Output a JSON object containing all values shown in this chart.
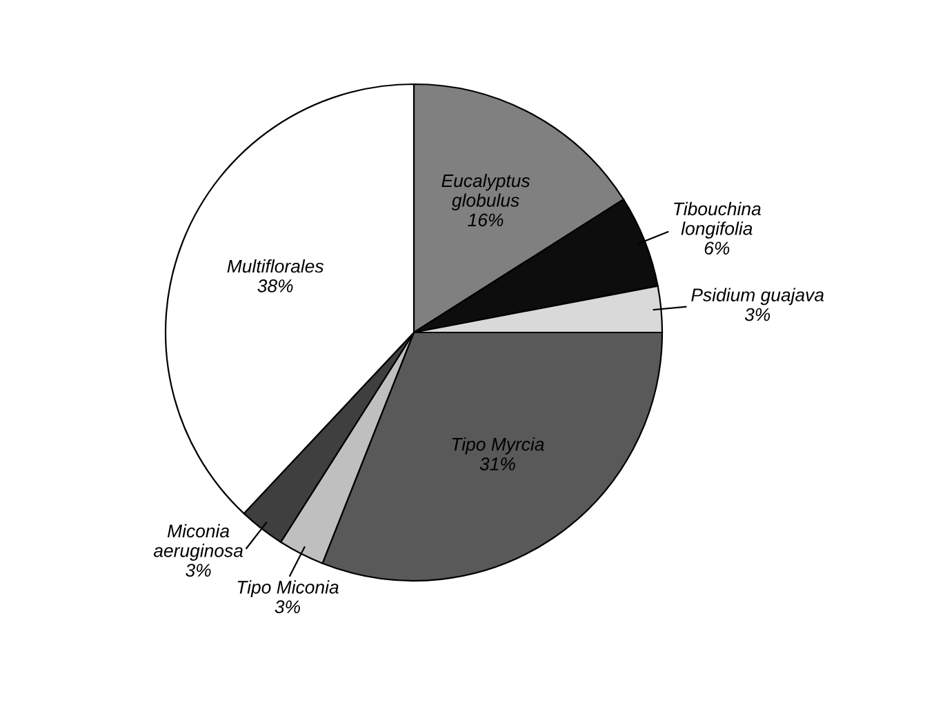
{
  "chart_data": {
    "type": "pie",
    "categories": [
      "Eucalyptus globulus",
      "Tibouchina longifolia",
      "Psidium guajava",
      "Tipo Myrcia",
      "Tipo Miconia",
      "Miconia aeruginosa",
      "Multiflorales"
    ],
    "values": [
      16,
      6,
      3,
      31,
      3,
      3,
      38
    ],
    "colors": [
      "#808080",
      "#0d0d0d",
      "#d9d9d9",
      "#595959",
      "#bfbfbf",
      "#3f3f3f",
      "#ffffff"
    ],
    "value_labels": [
      "16%",
      "6%",
      "3%",
      "31%",
      "3%",
      "3%",
      "38%"
    ],
    "legend": false
  }
}
